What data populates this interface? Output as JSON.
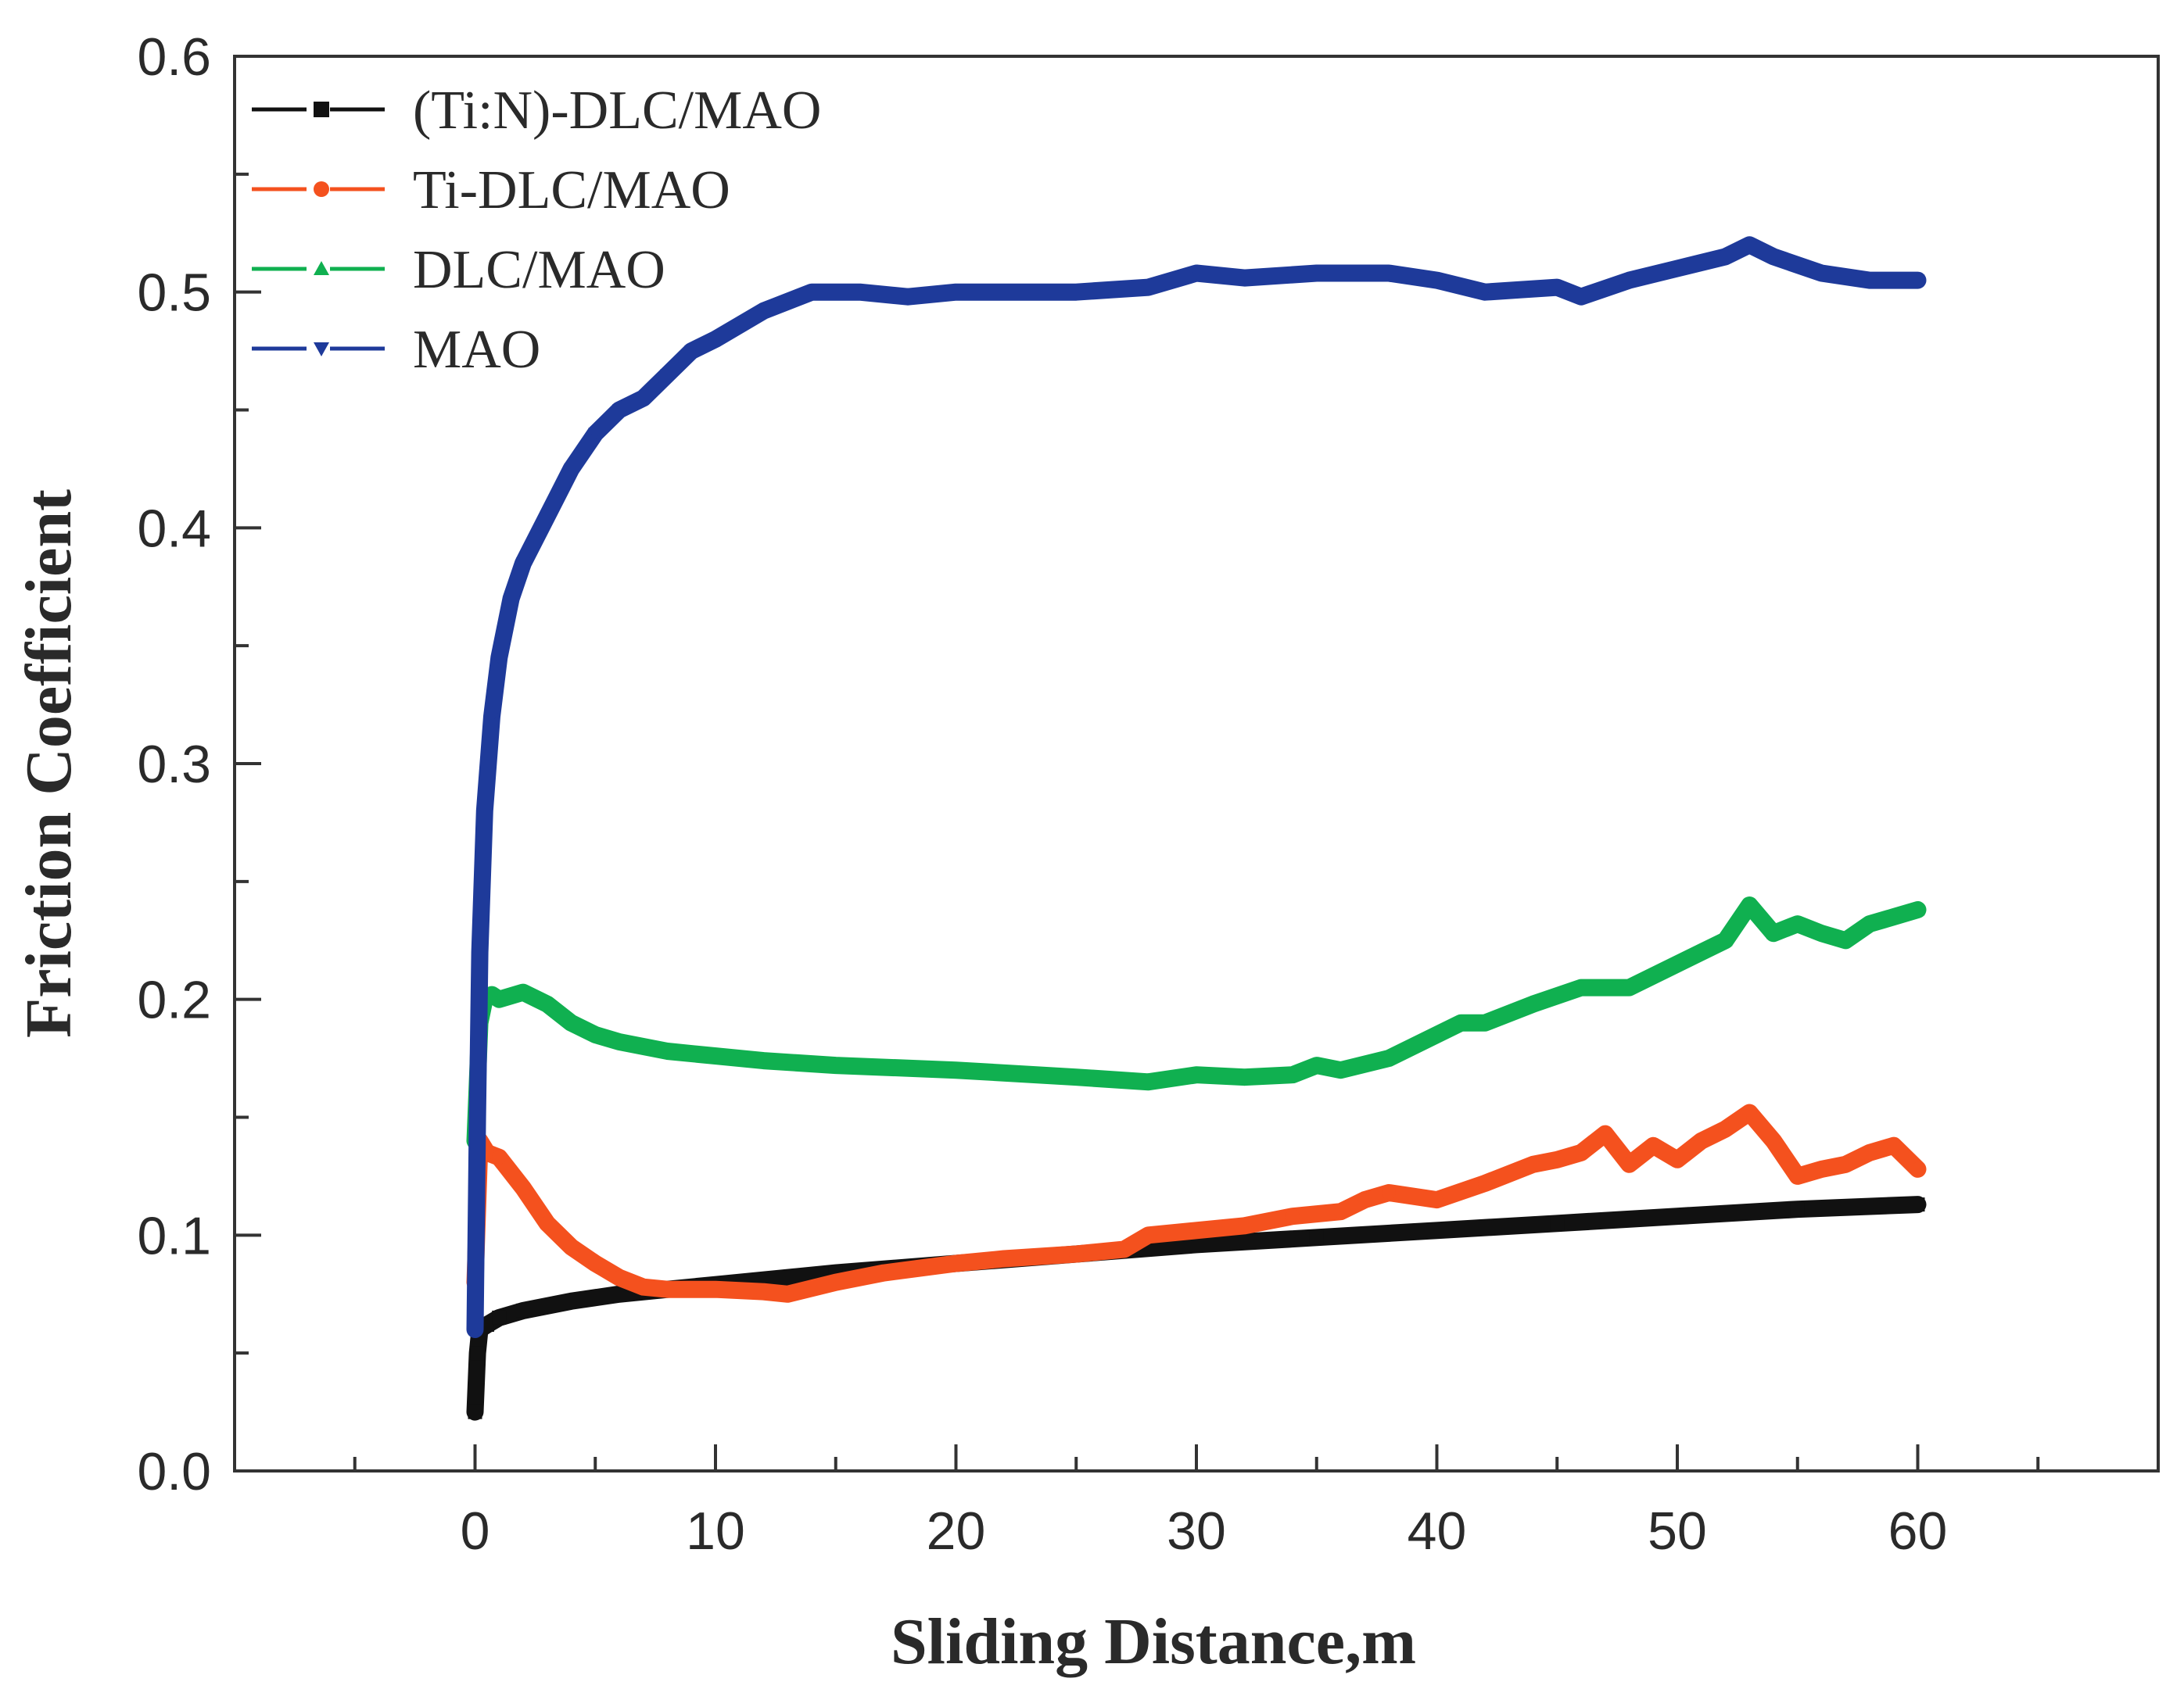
{
  "chart_data": {
    "type": "line",
    "title": "",
    "xlabel": "Sliding Distance,m",
    "ylabel": "Friction Coefficient",
    "xlim": [
      -10,
      70
    ],
    "ylim": [
      0.0,
      0.6
    ],
    "xticks": [
      "0",
      "10",
      "20",
      "30",
      "40",
      "50",
      "60"
    ],
    "yticks": [
      "0.0",
      "0.1",
      "0.2",
      "0.3",
      "0.4",
      "0.5",
      "0.6"
    ],
    "grid": false,
    "legend_position": "top-left",
    "series": [
      {
        "name": "(Ti:N)-DLC/MAO",
        "color": "#111111",
        "marker": "square",
        "x": [
          0,
          0.1,
          0.2,
          0.5,
          1,
          2,
          4,
          6,
          8,
          10,
          15,
          20,
          25,
          30,
          35,
          40,
          45,
          50,
          55,
          60
        ],
        "y": [
          0.025,
          0.05,
          0.06,
          0.062,
          0.065,
          0.068,
          0.072,
          0.075,
          0.077,
          0.079,
          0.084,
          0.088,
          0.092,
          0.096,
          0.099,
          0.102,
          0.105,
          0.108,
          0.111,
          0.113
        ]
      },
      {
        "name": "Ti-DLC/MAO",
        "color": "#f4511e",
        "marker": "circle",
        "x": [
          0,
          0.2,
          0.5,
          1,
          2,
          3,
          4,
          5,
          6,
          7,
          8,
          10,
          12,
          13,
          15,
          17,
          20,
          22,
          25,
          27,
          28,
          30,
          32,
          34,
          36,
          37,
          38,
          40,
          42,
          44,
          45,
          46,
          47,
          48,
          49,
          50,
          51,
          52,
          53,
          54,
          55,
          56,
          57,
          58,
          59,
          60
        ],
        "y": [
          0.08,
          0.14,
          0.135,
          0.133,
          0.12,
          0.105,
          0.095,
          0.088,
          0.082,
          0.078,
          0.077,
          0.077,
          0.076,
          0.075,
          0.08,
          0.084,
          0.088,
          0.09,
          0.092,
          0.094,
          0.1,
          0.102,
          0.104,
          0.108,
          0.11,
          0.115,
          0.118,
          0.115,
          0.122,
          0.13,
          0.132,
          0.135,
          0.143,
          0.13,
          0.138,
          0.132,
          0.14,
          0.145,
          0.152,
          0.14,
          0.125,
          0.128,
          0.13,
          0.135,
          0.138,
          0.128
        ]
      },
      {
        "name": "DLC/MAO",
        "color": "#10b050",
        "marker": "triangle-up",
        "x": [
          0,
          0.2,
          0.4,
          0.7,
          1,
          2,
          3,
          4,
          5,
          6,
          8,
          10,
          12,
          15,
          20,
          25,
          28,
          30,
          32,
          34,
          35,
          36,
          38,
          40,
          41,
          42,
          44,
          46,
          48,
          50,
          51,
          52,
          53,
          54,
          55,
          56,
          57,
          58,
          59,
          60
        ],
        "y": [
          0.14,
          0.19,
          0.2,
          0.202,
          0.2,
          0.203,
          0.198,
          0.19,
          0.185,
          0.182,
          0.178,
          0.176,
          0.174,
          0.172,
          0.17,
          0.167,
          0.165,
          0.168,
          0.167,
          0.168,
          0.172,
          0.17,
          0.175,
          0.185,
          0.19,
          0.19,
          0.198,
          0.205,
          0.205,
          0.215,
          0.22,
          0.225,
          0.24,
          0.228,
          0.232,
          0.228,
          0.225,
          0.232,
          0.235,
          0.238
        ]
      },
      {
        "name": "MAO",
        "color": "#1e3a9a",
        "marker": "triangle-down",
        "x": [
          0,
          0.1,
          0.2,
          0.4,
          0.7,
          1,
          1.5,
          2,
          3,
          4,
          5,
          6,
          7,
          8,
          9,
          10,
          12,
          14,
          16,
          18,
          20,
          22,
          25,
          28,
          30,
          32,
          35,
          38,
          40,
          42,
          45,
          46,
          48,
          50,
          52,
          53,
          54,
          56,
          58,
          60
        ],
        "y": [
          0.06,
          0.15,
          0.22,
          0.28,
          0.32,
          0.345,
          0.37,
          0.385,
          0.405,
          0.425,
          0.44,
          0.45,
          0.455,
          0.465,
          0.475,
          0.48,
          0.492,
          0.5,
          0.5,
          0.498,
          0.5,
          0.5,
          0.5,
          0.502,
          0.508,
          0.506,
          0.508,
          0.508,
          0.505,
          0.5,
          0.502,
          0.498,
          0.505,
          0.51,
          0.515,
          0.52,
          0.515,
          0.508,
          0.505,
          0.505
        ]
      }
    ]
  }
}
